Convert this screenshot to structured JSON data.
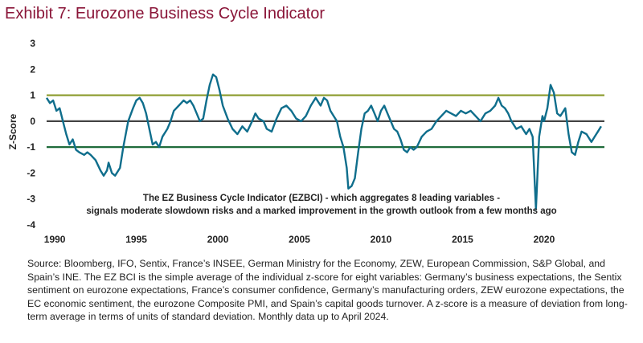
{
  "exhibit_title": "Exhibit 7: Eurozone Business Cycle Indicator",
  "colors": {
    "title": "#8a1538",
    "series": "#0f6e8c",
    "upper_threshold": "#8a9a2a",
    "lower_threshold": "#1f6b3a",
    "zero_line": "#444444"
  },
  "source_note": "Source: Bloomberg, IFO, Sentix, France’s INSEE, German Ministry for the Economy, ZEW, European Commission, S&P Global, and Spain’s INE. The EZ BCI is the simple average of the individual z-score for eight variables: Germany’s business expectations, the Sentix sentiment on eurozone expectations, France’s consumer confidence, Germany’s manufacturing orders, ZEW eurozone expectations, the EC economic sentiment, the eurozone Composite PMI, and Spain’s capital goods turnover. A z-score is a measure of deviation from long-term average in terms of units of standard deviation. Monthly data up to April 2024.",
  "chart_data": {
    "type": "line",
    "title": "",
    "xlabel": "",
    "ylabel": "Z-Score",
    "xlim": [
      1989.5,
      2023.7
    ],
    "ylim": [
      -4,
      3
    ],
    "yticks": [
      "3",
      "2",
      "1",
      "0",
      "-1",
      "-2",
      "-3",
      "-4"
    ],
    "xticks": [
      "1990",
      "1995",
      "2000",
      "2005",
      "2010",
      "2015",
      "2020"
    ],
    "reference_lines": [
      {
        "y": 1,
        "color": "#8a9a2a"
      },
      {
        "y": 0,
        "color": "#444444"
      },
      {
        "y": -1,
        "color": "#1f6b3a"
      }
    ],
    "annotation": [
      "The EZ Business Cycle Indicator (EZBCI) - which aggregates 8 leading variables -",
      "signals moderate slowdown risks and a marked improvement in the growth outlook from a few months ago"
    ],
    "series": [
      {
        "values": [
          [
            1989.5,
            0.9
          ],
          [
            1989.7,
            0.7
          ],
          [
            1989.9,
            0.8
          ],
          [
            1990.1,
            0.4
          ],
          [
            1990.3,
            0.5
          ],
          [
            1990.5,
            0.0
          ],
          [
            1990.7,
            -0.5
          ],
          [
            1990.9,
            -0.9
          ],
          [
            1991.1,
            -0.7
          ],
          [
            1991.3,
            -1.1
          ],
          [
            1991.5,
            -1.2
          ],
          [
            1991.8,
            -1.3
          ],
          [
            1992.0,
            -1.2
          ],
          [
            1992.2,
            -1.3
          ],
          [
            1992.5,
            -1.5
          ],
          [
            1992.8,
            -1.9
          ],
          [
            1993.0,
            -2.1
          ],
          [
            1993.2,
            -1.9
          ],
          [
            1993.3,
            -1.6
          ],
          [
            1993.5,
            -2.0
          ],
          [
            1993.7,
            -2.1
          ],
          [
            1994.0,
            -1.8
          ],
          [
            1994.2,
            -1.0
          ],
          [
            1994.5,
            0.0
          ],
          [
            1994.8,
            0.5
          ],
          [
            1995.0,
            0.8
          ],
          [
            1995.2,
            0.9
          ],
          [
            1995.4,
            0.7
          ],
          [
            1995.6,
            0.3
          ],
          [
            1995.8,
            -0.3
          ],
          [
            1996.0,
            -0.9
          ],
          [
            1996.2,
            -0.8
          ],
          [
            1996.4,
            -1.0
          ],
          [
            1996.6,
            -0.6
          ],
          [
            1996.9,
            -0.3
          ],
          [
            1997.1,
            0.0
          ],
          [
            1997.3,
            0.4
          ],
          [
            1997.6,
            0.6
          ],
          [
            1997.9,
            0.8
          ],
          [
            1998.1,
            0.7
          ],
          [
            1998.3,
            0.8
          ],
          [
            1998.5,
            0.6
          ],
          [
            1998.7,
            0.3
          ],
          [
            1998.9,
            0.0
          ],
          [
            1999.1,
            0.1
          ],
          [
            1999.3,
            0.8
          ],
          [
            1999.5,
            1.4
          ],
          [
            1999.7,
            1.8
          ],
          [
            1999.9,
            1.7
          ],
          [
            2000.1,
            1.2
          ],
          [
            2000.3,
            0.6
          ],
          [
            2000.6,
            0.1
          ],
          [
            2000.9,
            -0.3
          ],
          [
            2001.2,
            -0.5
          ],
          [
            2001.5,
            -0.2
          ],
          [
            2001.8,
            -0.4
          ],
          [
            2002.1,
            0.0
          ],
          [
            2002.3,
            0.3
          ],
          [
            2002.5,
            0.1
          ],
          [
            2002.8,
            0.0
          ],
          [
            2003.0,
            -0.3
          ],
          [
            2003.3,
            -0.4
          ],
          [
            2003.6,
            0.1
          ],
          [
            2003.9,
            0.5
          ],
          [
            2004.2,
            0.6
          ],
          [
            2004.5,
            0.4
          ],
          [
            2004.8,
            0.1
          ],
          [
            2005.1,
            0.0
          ],
          [
            2005.4,
            0.2
          ],
          [
            2005.7,
            0.6
          ],
          [
            2006.0,
            0.9
          ],
          [
            2006.3,
            0.6
          ],
          [
            2006.5,
            0.9
          ],
          [
            2006.7,
            0.8
          ],
          [
            2006.9,
            0.4
          ],
          [
            2007.1,
            0.2
          ],
          [
            2007.3,
            0.0
          ],
          [
            2007.5,
            -0.6
          ],
          [
            2007.7,
            -1.0
          ],
          [
            2007.9,
            -1.8
          ],
          [
            2008.0,
            -2.6
          ],
          [
            2008.2,
            -2.5
          ],
          [
            2008.4,
            -2.2
          ],
          [
            2008.6,
            -1.2
          ],
          [
            2008.8,
            -0.3
          ],
          [
            2009.0,
            0.3
          ],
          [
            2009.2,
            0.4
          ],
          [
            2009.4,
            0.6
          ],
          [
            2009.6,
            0.3
          ],
          [
            2009.8,
            0.0
          ],
          [
            2010.0,
            0.4
          ],
          [
            2010.2,
            0.6
          ],
          [
            2010.4,
            0.3
          ],
          [
            2010.6,
            0.0
          ],
          [
            2010.8,
            -0.3
          ],
          [
            2011.0,
            -0.4
          ],
          [
            2011.2,
            -0.7
          ],
          [
            2011.4,
            -1.1
          ],
          [
            2011.6,
            -1.2
          ],
          [
            2011.8,
            -1.0
          ],
          [
            2012.0,
            -1.1
          ],
          [
            2012.2,
            -1.0
          ],
          [
            2012.5,
            -0.6
          ],
          [
            2012.8,
            -0.4
          ],
          [
            2013.1,
            -0.3
          ],
          [
            2013.4,
            0.0
          ],
          [
            2013.7,
            0.2
          ],
          [
            2014.0,
            0.4
          ],
          [
            2014.3,
            0.3
          ],
          [
            2014.6,
            0.2
          ],
          [
            2014.9,
            0.4
          ],
          [
            2015.2,
            0.3
          ],
          [
            2015.5,
            0.4
          ],
          [
            2015.8,
            0.2
          ],
          [
            2016.1,
            0.0
          ],
          [
            2016.4,
            0.3
          ],
          [
            2016.7,
            0.4
          ],
          [
            2017.0,
            0.6
          ],
          [
            2017.2,
            0.9
          ],
          [
            2017.4,
            0.6
          ],
          [
            2017.6,
            0.5
          ],
          [
            2017.8,
            0.3
          ],
          [
            2018.0,
            0.0
          ],
          [
            2018.3,
            -0.3
          ],
          [
            2018.6,
            -0.2
          ],
          [
            2018.9,
            -0.5
          ],
          [
            2019.1,
            -0.3
          ],
          [
            2019.3,
            -0.6
          ],
          [
            2019.5,
            -3.4
          ],
          [
            2019.7,
            -0.6
          ],
          [
            2019.9,
            0.2
          ],
          [
            2020.0,
            0.0
          ],
          [
            2020.2,
            0.5
          ],
          [
            2020.4,
            1.4
          ],
          [
            2020.6,
            1.1
          ],
          [
            2020.8,
            0.3
          ],
          [
            2021.0,
            0.2
          ],
          [
            2021.3,
            0.5
          ],
          [
            2021.5,
            -0.5
          ],
          [
            2021.7,
            -1.2
          ],
          [
            2021.9,
            -1.3
          ],
          [
            2022.1,
            -0.8
          ],
          [
            2022.3,
            -0.4
          ],
          [
            2022.6,
            -0.5
          ],
          [
            2022.9,
            -0.8
          ],
          [
            2023.1,
            -0.6
          ],
          [
            2023.3,
            -0.4
          ],
          [
            2023.5,
            -0.2
          ]
        ]
      }
    ]
  }
}
